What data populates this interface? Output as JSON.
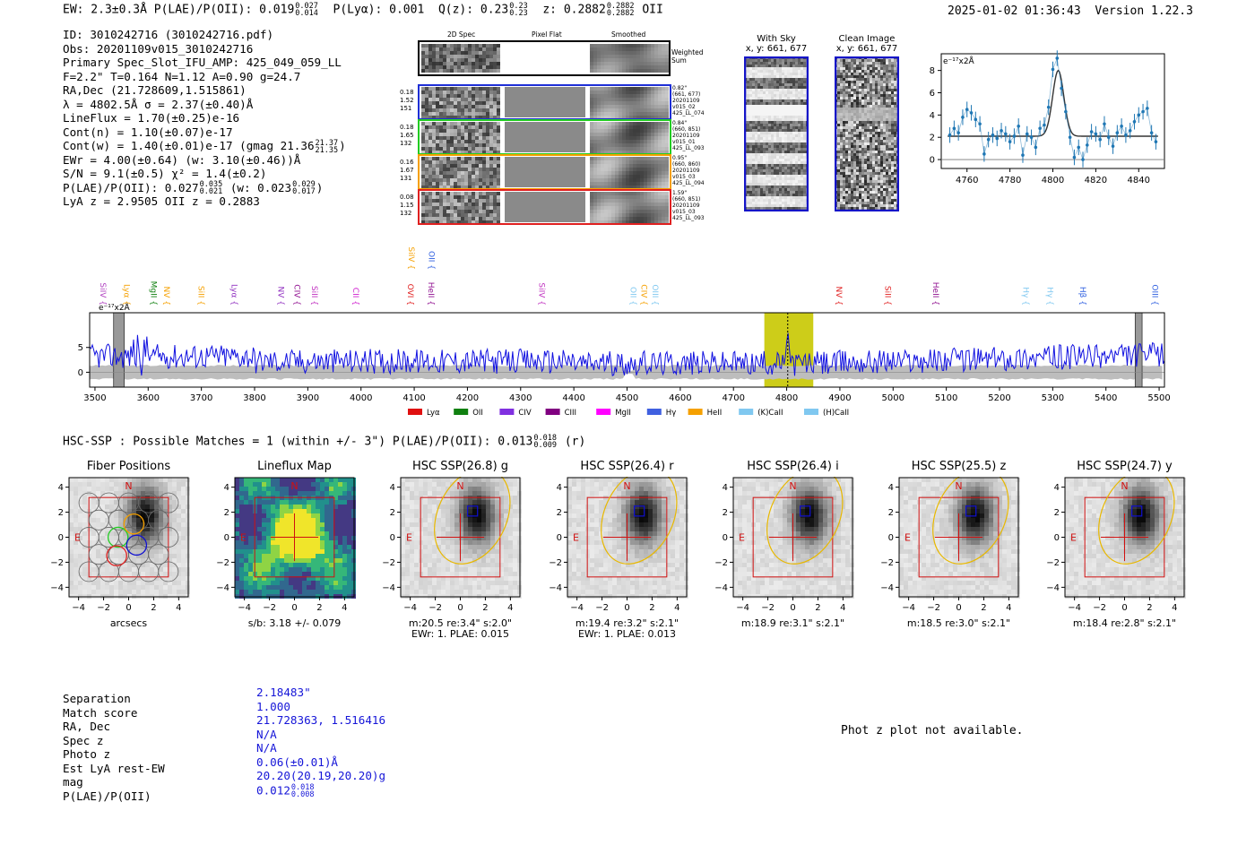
{
  "header": {
    "line": "EW: 2.3±0.3Å  P(LAE)/P(OII): 0.019",
    "plae_hi": "0.027",
    "plae_lo": "0.014",
    "plya": "P(Lyα): 0.001",
    "qz": "Q(z): 0.23",
    "qz_hi": "0.23",
    "qz_lo": "0.23",
    "z": "z: 0.2882",
    "z_hi": "0.2882",
    "z_lo": "0.2882",
    "z_line": "OII",
    "timestamp": "2025-01-02 01:36:43",
    "version": "Version 1.22.3"
  },
  "info": {
    "id": "ID: 3010242716 (3010242716.pdf)",
    "obs": "Obs: 20201109v015_3010242716",
    "primary": "Primary Spec_Slot_IFU_AMP: 425_049_059_LL",
    "fiber": "F=2.2\"  T=0.164  N=1.12  A=0.90  g=24.7",
    "radec": "RA,Dec (21.728609,1.515861)",
    "lambda": "λ = 4802.5Å   σ = 2.37(±0.40)Å",
    "lineflux": "LineFlux = 1.70(±0.25)e-16",
    "contn": "Cont(n) = 1.10(±0.07)e-17",
    "contw": "Cont(w) = 1.40(±0.01)e-17 (gmag 21.36",
    "gmag_hi": "21.37",
    "gmag_lo": "21.35",
    "ewr": "EWr = 4.00(±0.64) (w: 3.10(±0.46))Å",
    "sn": "S/N = 9.1(±0.5)  χ² = 1.4(±0.2)",
    "plae": "P(LAE)/P(OII): 0.027",
    "plae_hi": "0.035",
    "plae_lo": "0.021",
    "plae_w": "(w: 0.023",
    "plae_w_hi": "0.029",
    "plae_w_lo": "0.017",
    "lyaz": "LyA z = 2.9505   OII z = 0.2883"
  },
  "cutouts": {
    "col_labels": [
      "2D Spec",
      "Pixel Flat",
      "Smoothed"
    ],
    "weighted_sum": "Weighted Sum",
    "rows": [
      {
        "vals": [
          "0.18",
          "1.52",
          "151"
        ],
        "meta": [
          "0.82\"",
          "(661, 677)",
          "20201109",
          "v015_02",
          "425_LL_074"
        ],
        "color": "#1f2fd6"
      },
      {
        "vals": [
          "0.18",
          "1.65",
          "132"
        ],
        "meta": [
          "0.84\"",
          "(660, 851)",
          "20201109",
          "v015_01",
          "425_LL_093"
        ],
        "color": "#22cc22"
      },
      {
        "vals": [
          "0.16",
          "1.67",
          "131"
        ],
        "meta": [
          "0.95\"",
          "(660, 860)",
          "20201109",
          "v015_03",
          "425_LL_094"
        ],
        "color": "#f5a000"
      },
      {
        "vals": [
          "0.08",
          "1.15",
          "132"
        ],
        "meta": [
          "1.59\"",
          "(660, 851)",
          "20201109",
          "v015_03",
          "425_LL_093"
        ],
        "color": "#e02020"
      }
    ]
  },
  "sky": {
    "with_sky": "With Sky",
    "with_sky_xy": "x, y: 661, 677",
    "clean": "Clean Image",
    "clean_xy": "x, y: 661, 677"
  },
  "zoom_chart": {
    "type": "line",
    "ylabel": "e⁻¹⁷x2Å",
    "xlim": [
      4748,
      4852
    ],
    "ylim": [
      -0.8,
      9.5
    ],
    "xticks": [
      "4760",
      "4780",
      "4800",
      "4820",
      "4840"
    ],
    "yticks": [
      "0",
      "2",
      "4",
      "6",
      "8"
    ],
    "x": [
      4752,
      4754,
      4756,
      4758,
      4760,
      4762,
      4764,
      4766,
      4768,
      4770,
      4772,
      4774,
      4776,
      4778,
      4780,
      4782,
      4784,
      4786,
      4788,
      4790,
      4792,
      4794,
      4796,
      4798,
      4800,
      4802,
      4804,
      4806,
      4808,
      4810,
      4812,
      4814,
      4816,
      4818,
      4820,
      4822,
      4824,
      4826,
      4828,
      4830,
      4832,
      4834,
      4836,
      4838,
      4840,
      4842,
      4844,
      4846,
      4848
    ],
    "values": [
      2.2,
      2.8,
      2.4,
      3.8,
      4.5,
      4.2,
      3.6,
      3.2,
      0.5,
      1.8,
      2.2,
      1.9,
      2.6,
      2.3,
      1.6,
      2.1,
      3.0,
      0.4,
      2.3,
      2.0,
      1.1,
      2.8,
      3.1,
      4.7,
      8.1,
      9.1,
      6.4,
      4.3,
      2.0,
      0.2,
      1.1,
      0.0,
      1.3,
      2.5,
      2.3,
      1.8,
      3.2,
      2.0,
      1.2,
      2.4,
      3.0,
      2.2,
      2.6,
      3.4,
      4.0,
      4.3,
      4.6,
      2.4,
      1.6
    ],
    "model_continuum": 2.1,
    "model_peak": 8.0,
    "model_center": 4802.5,
    "model_sigma": 2.6
  },
  "spectrum": {
    "type": "line",
    "ylabel": "e⁻¹⁷x2Å",
    "xlim": [
      3490,
      5510
    ],
    "ylim": [
      -3.0,
      12
    ],
    "xticks": [
      "3500",
      "3600",
      "3700",
      "3800",
      "3900",
      "4000",
      "4100",
      "4200",
      "4300",
      "4400",
      "4500",
      "4600",
      "4700",
      "4800",
      "4900",
      "5000",
      "5100",
      "5200",
      "5300",
      "5400",
      "5500"
    ],
    "yticks": [
      "0",
      "5"
    ],
    "highlight_range": [
      4758,
      4850
    ],
    "peak_x": 4802,
    "masked_ranges": [
      [
        3535,
        3555
      ],
      [
        5455,
        5468
      ]
    ],
    "lines": [
      {
        "name": "SiIV",
        "x": 3510,
        "color": "#b040c0"
      },
      {
        "name": "Lyα",
        "x": 3555,
        "color": "#f5a000"
      },
      {
        "name": "MgII",
        "x": 3605,
        "color": "#108010"
      },
      {
        "name": "NV",
        "x": 3630,
        "color": "#f5a000"
      },
      {
        "name": "SiII",
        "x": 3695,
        "color": "#f5a000"
      },
      {
        "name": "Lyα",
        "x": 3757,
        "color": "#9030c0"
      },
      {
        "name": "NV",
        "x": 3845,
        "color": "#9030c0"
      },
      {
        "name": "CIV",
        "x": 3875,
        "color": "#901090"
      },
      {
        "name": "SiII",
        "x": 3908,
        "color": "#c030c0"
      },
      {
        "name": "CII",
        "x": 3985,
        "color": "#d020d0"
      },
      {
        "name": "OVI",
        "x": 4088,
        "color": "#e02020"
      },
      {
        "name": "HeII",
        "x": 4127,
        "color": "#901090"
      },
      {
        "name": "SiIV",
        "x": 4090,
        "color": "#f5a000",
        "high": true
      },
      {
        "name": "OII",
        "x": 4128,
        "color": "#3060e0",
        "high": true
      },
      {
        "name": "SiIV",
        "x": 4335,
        "color": "#c030c0"
      },
      {
        "name": "OII",
        "x": 4507,
        "color": "#80c8f0"
      },
      {
        "name": "CIV",
        "x": 4527,
        "color": "#f5a000"
      },
      {
        "name": "OIII",
        "x": 4548,
        "color": "#80c8f0"
      },
      {
        "name": "NV",
        "x": 4893,
        "color": "#e02020"
      },
      {
        "name": "SiII",
        "x": 4985,
        "color": "#e02020"
      },
      {
        "name": "HeII",
        "x": 5075,
        "color": "#901090"
      },
      {
        "name": "Hγ",
        "x": 5245,
        "color": "#80c8f0"
      },
      {
        "name": "Hγ",
        "x": 5290,
        "color": "#80c8f0"
      },
      {
        "name": "Hβ",
        "x": 5352,
        "color": "#3060e0"
      },
      {
        "name": "OIII",
        "x": 5487,
        "color": "#3060e0"
      }
    ],
    "legend": [
      {
        "name": "Lyα",
        "color": "#e01010"
      },
      {
        "name": "OII",
        "color": "#108010"
      },
      {
        "name": "CIV",
        "color": "#8030e0"
      },
      {
        "name": "CIII",
        "color": "#800080"
      },
      {
        "name": "MgII",
        "color": "#ff00ff"
      },
      {
        "name": "Hγ",
        "color": "#4060e0"
      },
      {
        "name": "HeII",
        "color": "#f5a000"
      },
      {
        "name": "(K)CaII",
        "color": "#80c8f0"
      },
      {
        "name": "(H)CaII",
        "color": "#80c8f0"
      }
    ]
  },
  "hsc": {
    "title": "HSC-SSP : Possible Matches = 1 (within +/- 3\")  P(LAE)/P(OII): 0.013",
    "plae_hi": "0.018",
    "plae_lo": "0.009",
    "band": "(r)",
    "panels": [
      {
        "title": "Fiber Positions",
        "cap1": "arcsecs",
        "cap2": "",
        "kind": "fiber"
      },
      {
        "title": "Lineflux Map",
        "cap1": "s/b: 3.18 +/- 0.079",
        "cap2": "",
        "kind": "flux"
      },
      {
        "title": "HSC SSP(26.8) g",
        "cap1": "m:20.5   re:3.4\"   s:2.0\"",
        "cap2": "EWr: 1. PLAE: 0.015",
        "kind": "img"
      },
      {
        "title": "HSC SSP(26.4) r",
        "cap1": "m:19.4   re:3.2\"   s:2.1\"",
        "cap2": "EWr: 1. PLAE: 0.013",
        "kind": "img"
      },
      {
        "title": "HSC SSP(26.4) i",
        "cap1": "m:18.9   re:3.1\"   s:2.1\"",
        "cap2": "",
        "kind": "img"
      },
      {
        "title": "HSC SSP(25.5) z",
        "cap1": "m:18.5   re:3.0\"   s:2.1\"",
        "cap2": "",
        "kind": "img"
      },
      {
        "title": "HSC SSP(24.7) y",
        "cap1": "m:18.4   re:2.8\"   s:2.1\"",
        "cap2": "",
        "kind": "img"
      }
    ],
    "ticks": [
      "−4",
      "−2",
      "0",
      "2",
      "4"
    ],
    "labels": {
      "north": "N",
      "east": "E"
    }
  },
  "match": {
    "labels": [
      "Separation",
      "Match score",
      "RA, Dec",
      "Spec z",
      "Photo z",
      "Est LyA rest-EW",
      "mag",
      "P(LAE)/P(OII)"
    ],
    "values": [
      "2.18483\"",
      "1.000",
      "21.728363, 1.516416",
      "N/A",
      "N/A",
      "0.06(±0.01)Å",
      "20.20(20.19,20.20)g",
      "0.012"
    ],
    "plae_hi": "0.018",
    "plae_lo": "0.008",
    "photz_msg": "Phot z plot not available."
  }
}
